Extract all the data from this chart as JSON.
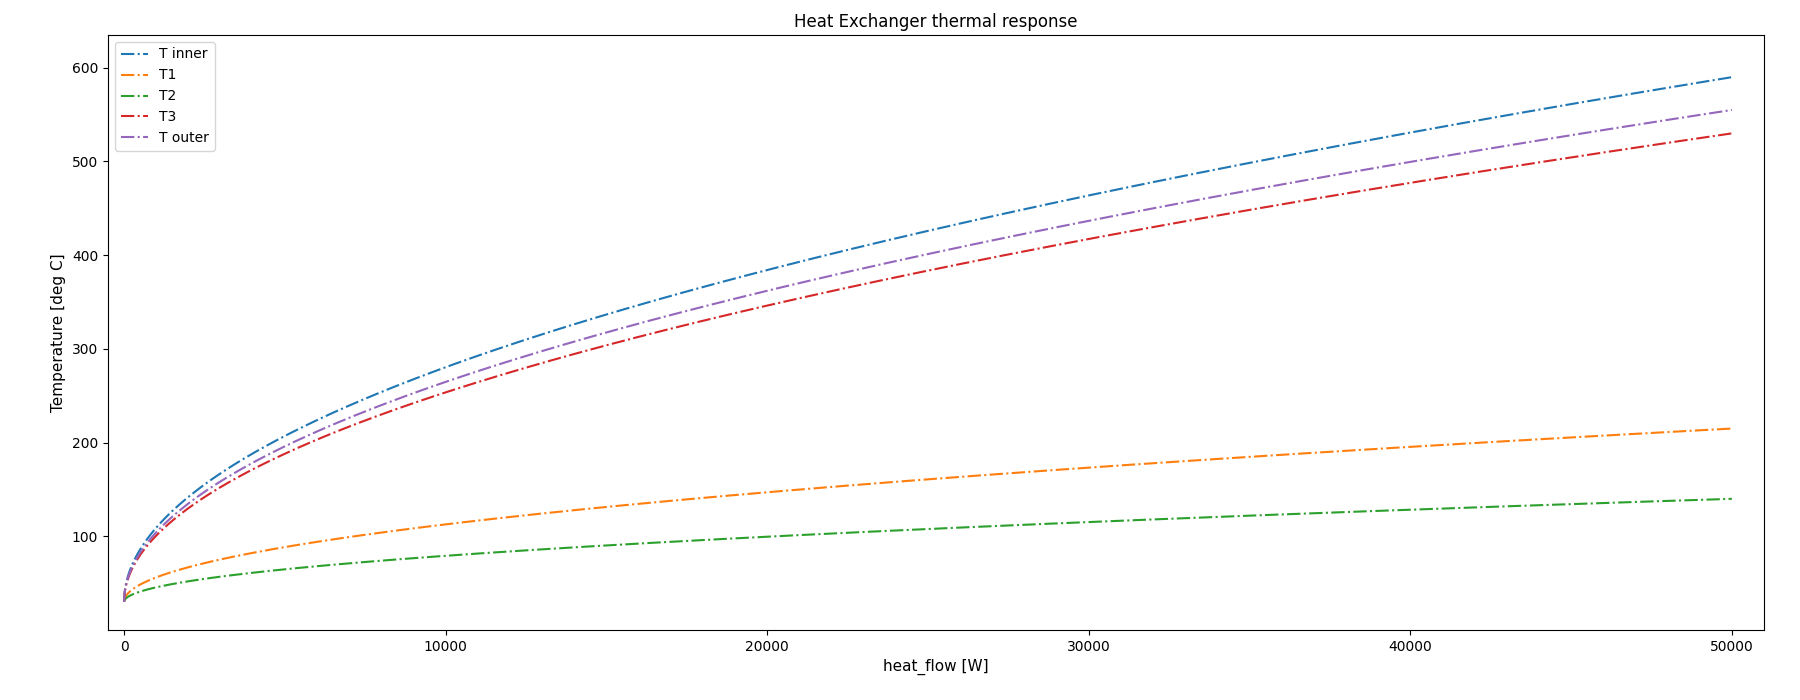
{
  "title": "Heat Exchanger thermal response",
  "xlabel": "heat_flow [W]",
  "ylabel": "Temperature [deg C]",
  "xlim": [
    -500,
    51000
  ],
  "ylim": [
    0,
    635
  ],
  "series": [
    {
      "label": "T inner",
      "color": "#1f77b4",
      "end_val": 590
    },
    {
      "label": "T1",
      "color": "#ff7f0e",
      "end_val": 215
    },
    {
      "label": "T2",
      "color": "#2ca02c",
      "end_val": 140
    },
    {
      "label": "T3",
      "color": "#d62728",
      "end_val": 530
    },
    {
      "label": "T outer",
      "color": "#9467bd",
      "end_val": 555
    }
  ],
  "T_start": 30,
  "x_max": 50000,
  "sqrt_power": 0.5,
  "background_color": "#ffffff",
  "linestyle": "-.",
  "linewidth": 1.5,
  "legend_loc": "upper left",
  "title_fontsize": 12,
  "label_fontsize": 11,
  "tick_fontsize": 10,
  "legend_fontsize": 10,
  "yticks": [
    100,
    200,
    300,
    400,
    500,
    600
  ],
  "xticks": [
    0,
    10000,
    20000,
    30000,
    40000,
    50000
  ]
}
